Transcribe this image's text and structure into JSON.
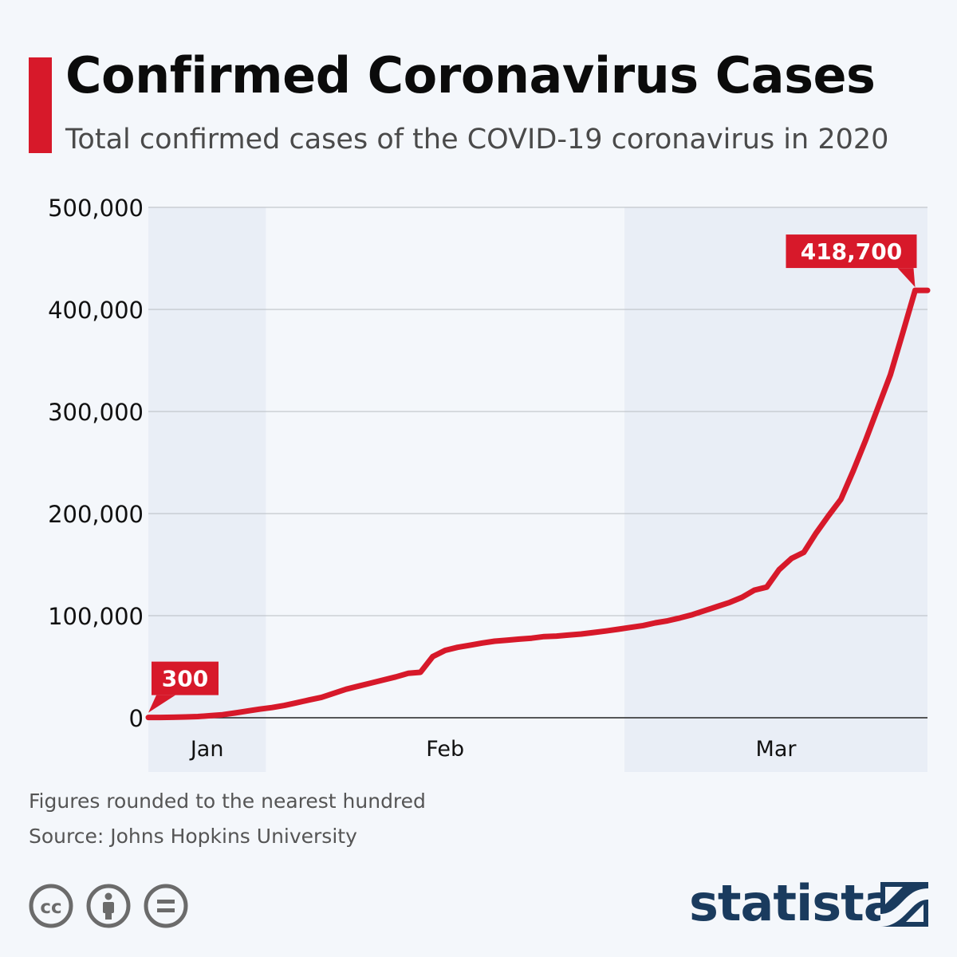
{
  "header": {
    "title": "Confirmed Coronavirus Cases",
    "subtitle": "Total confirmed cases of the COVID-19 coronavirus in 2020"
  },
  "colors": {
    "accent": "#d7192a",
    "band": "#e9eef6",
    "grid": "#b8bcc2",
    "brand": "#1a3b5e",
    "background": "#f4f7fb"
  },
  "chart_data": {
    "type": "line",
    "ylim": [
      0,
      500000
    ],
    "y_ticks": [
      {
        "value": 0,
        "label": "0"
      },
      {
        "value": 100000,
        "label": "100,000"
      },
      {
        "value": 200000,
        "label": "200,000"
      },
      {
        "value": 300000,
        "label": "300,000"
      },
      {
        "value": 400000,
        "label": "400,000"
      },
      {
        "value": 500000,
        "label": "500,000"
      }
    ],
    "x_range": [
      "2020-01-22",
      "2020-03-25"
    ],
    "month_bands": [
      {
        "label": "Jan",
        "start": "2020-01-22",
        "end": "2020-01-31",
        "shaded": true
      },
      {
        "label": "Feb",
        "start": "2020-02-01",
        "end": "2020-02-29",
        "shaded": false
      },
      {
        "label": "Mar",
        "start": "2020-03-01",
        "end": "2020-03-25",
        "shaded": true
      }
    ],
    "x": [
      "2020-01-22",
      "2020-01-23",
      "2020-01-24",
      "2020-01-25",
      "2020-01-26",
      "2020-01-27",
      "2020-01-28",
      "2020-01-29",
      "2020-01-30",
      "2020-01-31",
      "2020-02-01",
      "2020-02-02",
      "2020-02-03",
      "2020-02-04",
      "2020-02-05",
      "2020-02-06",
      "2020-02-07",
      "2020-02-08",
      "2020-02-09",
      "2020-02-10",
      "2020-02-11",
      "2020-02-12",
      "2020-02-13",
      "2020-02-14",
      "2020-02-15",
      "2020-02-16",
      "2020-02-17",
      "2020-02-18",
      "2020-02-19",
      "2020-02-20",
      "2020-02-21",
      "2020-02-22",
      "2020-02-23",
      "2020-02-24",
      "2020-02-25",
      "2020-02-26",
      "2020-02-27",
      "2020-02-28",
      "2020-02-29",
      "2020-03-01",
      "2020-03-02",
      "2020-03-03",
      "2020-03-04",
      "2020-03-05",
      "2020-03-06",
      "2020-03-07",
      "2020-03-08",
      "2020-03-09",
      "2020-03-10",
      "2020-03-11",
      "2020-03-12",
      "2020-03-13",
      "2020-03-14",
      "2020-03-15",
      "2020-03-16",
      "2020-03-17",
      "2020-03-18",
      "2020-03-19",
      "2020-03-20",
      "2020-03-21",
      "2020-03-22",
      "2020-03-23",
      "2020-03-24",
      "2020-03-25"
    ],
    "values": [
      300,
      300,
      500,
      800,
      1200,
      2000,
      3000,
      4700,
      6600,
      8400,
      10000,
      12000,
      14700,
      17400,
      20000,
      24000,
      28000,
      31000,
      34000,
      37000,
      40000,
      43500,
      44500,
      60000,
      66000,
      69000,
      71000,
      73200,
      75000,
      76000,
      77000,
      78000,
      79500,
      80000,
      81000,
      82000,
      83500,
      85000,
      86700,
      88500,
      90300,
      93000,
      95000,
      97800,
      101000,
      105000,
      109000,
      113000,
      118000,
      125000,
      128000,
      145000,
      156000,
      162000,
      181000,
      198000,
      214000,
      242000,
      272000,
      304000,
      336000,
      377000,
      418700,
      418700
    ],
    "annotations": [
      {
        "x": "2020-01-22",
        "value": 300,
        "label": "300"
      },
      {
        "x": "2020-03-24",
        "value": 418700,
        "label": "418,700"
      }
    ]
  },
  "footer": {
    "note": "Figures rounded to the nearest hundred",
    "source": "Source: Johns Hopkins University",
    "brand": "statista",
    "license_icons": [
      "cc-icon",
      "attribution-icon",
      "no-derivatives-icon"
    ]
  }
}
